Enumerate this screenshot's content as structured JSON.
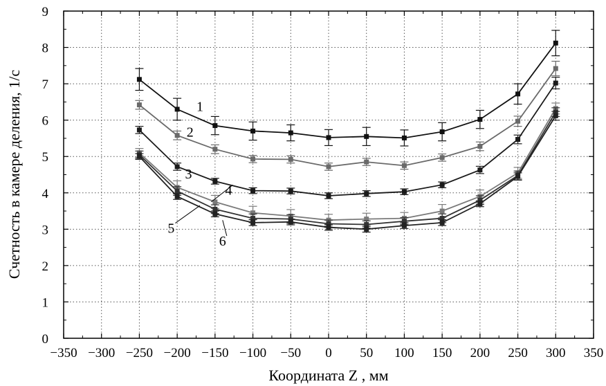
{
  "chart_data": {
    "type": "line",
    "xlabel": "Координата Z , мм",
    "ylabel": "Счетность в камере деления, 1/с",
    "xlim": [
      -350,
      350
    ],
    "ylim": [
      0,
      9
    ],
    "x_ticks": [
      -350,
      -300,
      -250,
      -200,
      -150,
      -100,
      -50,
      0,
      50,
      100,
      150,
      200,
      250,
      300,
      350
    ],
    "y_ticks": [
      0,
      1,
      2,
      3,
      4,
      5,
      6,
      7,
      8,
      9
    ],
    "grid": true,
    "x": [
      -250,
      -200,
      -150,
      -100,
      -50,
      0,
      50,
      100,
      150,
      200,
      250,
      300
    ],
    "series": [
      {
        "name": "1",
        "color": "#111111",
        "values": [
          7.12,
          6.3,
          5.85,
          5.7,
          5.65,
          5.52,
          5.55,
          5.51,
          5.68,
          6.02,
          6.72,
          8.12
        ],
        "errors": [
          0.3,
          0.3,
          0.25,
          0.25,
          0.22,
          0.22,
          0.25,
          0.22,
          0.25,
          0.25,
          0.28,
          0.35
        ]
      },
      {
        "name": "2",
        "color": "#6a6a6a",
        "values": [
          6.42,
          5.58,
          5.2,
          4.93,
          4.92,
          4.72,
          4.85,
          4.75,
          4.97,
          5.28,
          5.97,
          7.42
        ],
        "errors": [
          0.12,
          0.12,
          0.12,
          0.1,
          0.1,
          0.1,
          0.1,
          0.1,
          0.1,
          0.12,
          0.14,
          0.2
        ]
      },
      {
        "name": "3",
        "color": "#1a1a1a",
        "values": [
          5.73,
          4.72,
          4.32,
          4.06,
          4.05,
          3.92,
          3.98,
          4.03,
          4.22,
          4.63,
          5.47,
          7.02
        ],
        "errors": [
          0.1,
          0.1,
          0.08,
          0.08,
          0.08,
          0.08,
          0.08,
          0.08,
          0.08,
          0.1,
          0.12,
          0.16
        ]
      },
      {
        "name": "4",
        "color": "#7a7a7a",
        "values": [
          5.1,
          4.15,
          3.75,
          3.45,
          3.36,
          3.25,
          3.28,
          3.3,
          3.5,
          3.9,
          4.55,
          6.32
        ],
        "errors": [
          0.12,
          0.18,
          0.18,
          0.18,
          0.18,
          0.16,
          0.16,
          0.16,
          0.18,
          0.18,
          0.15,
          0.15
        ]
      },
      {
        "name": "5",
        "color": "#333333",
        "values": [
          5.05,
          4.05,
          3.55,
          3.3,
          3.28,
          3.15,
          3.13,
          3.22,
          3.3,
          3.8,
          4.48,
          6.22
        ],
        "errors": [
          0.1,
          0.12,
          0.12,
          0.12,
          0.12,
          0.1,
          0.1,
          0.1,
          0.12,
          0.12,
          0.12,
          0.12
        ]
      },
      {
        "name": "6",
        "color": "#222222",
        "values": [
          5.0,
          3.9,
          3.42,
          3.18,
          3.2,
          3.05,
          3.0,
          3.1,
          3.18,
          3.7,
          4.45,
          6.12
        ],
        "errors": [
          0.08,
          0.08,
          0.08,
          0.08,
          0.08,
          0.08,
          0.08,
          0.08,
          0.08,
          0.08,
          0.1,
          0.12
        ]
      }
    ]
  }
}
